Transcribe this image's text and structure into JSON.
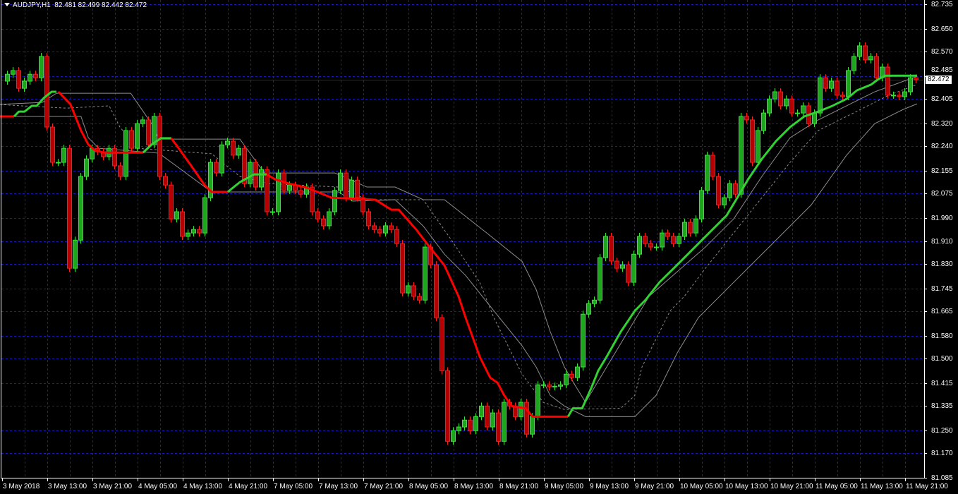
{
  "header": {
    "symbol_timeframe": "AUDJPY,H1",
    "open": "82.481",
    "high": "82.499",
    "low": "82.442",
    "close": "82.472"
  },
  "current_price_label": "82.472",
  "colors": {
    "background": "#000000",
    "grid": "#1c1ca8",
    "bull": "#1ea51e",
    "bull_border": "#32e632",
    "bear": "#b40000",
    "bear_border": "#ff1a1a",
    "trend_up": "#32d232",
    "trend_down": "#ff0000",
    "bands": "#8c8c8c",
    "price_line": "#1c1ca8"
  },
  "chart_data": {
    "type": "candlestick",
    "grid": true,
    "ylim": [
      81.085,
      82.735
    ],
    "y_ticks": [
      "82.735",
      "82.650",
      "82.570",
      "82.485",
      "82.405",
      "82.320",
      "82.240",
      "82.155",
      "82.075",
      "81.990",
      "81.910",
      "81.830",
      "81.745",
      "81.665",
      "81.580",
      "81.500",
      "81.415",
      "81.335",
      "81.250",
      "81.170",
      "81.085"
    ],
    "x_ticks": [
      "3 May 2018",
      "3 May 13:00",
      "3 May 21:00",
      "4 May 05:00",
      "4 May 13:00",
      "4 May 21:00",
      "7 May 05:00",
      "7 May 13:00",
      "7 May 21:00",
      "8 May 05:00",
      "8 May 13:00",
      "8 May 21:00",
      "9 May 05:00",
      "9 May 13:00",
      "9 May 21:00",
      "10 May 05:00",
      "10 May 13:00",
      "10 May 21:00",
      "11 May 05:00",
      "11 May 13:00",
      "11 May 21:00"
    ],
    "first_open": 82.467,
    "close": [
      82.491,
      82.504,
      82.442,
      82.467,
      82.491,
      82.479,
      82.553,
      82.307,
      82.184,
      82.184,
      82.233,
      81.815,
      81.913,
      82.135,
      82.196,
      82.233,
      82.221,
      82.204,
      82.233,
      82.172,
      82.135,
      82.295,
      82.233,
      82.319,
      82.332,
      82.245,
      82.344,
      82.135,
      82.105,
      81.987,
      82.012,
      81.926,
      81.938,
      81.95,
      81.938,
      82.061,
      82.184,
      82.147,
      82.245,
      82.258,
      82.209,
      82.233,
      82.11,
      82.184,
      82.098,
      82.159,
      82.012,
      82.012,
      82.147,
      82.086,
      82.105,
      82.086,
      82.073,
      82.098,
      82.012,
      81.987,
      81.963,
      82.012,
      82.086,
      82.147,
      82.061,
      82.122,
      82.061,
      82.012,
      81.963,
      81.95,
      81.938,
      81.963,
      81.95,
      81.901,
      81.729,
      81.754,
      81.717,
      81.704,
      81.889,
      81.827,
      81.643,
      81.458,
      81.212,
      81.249,
      81.262,
      81.286,
      81.249,
      81.298,
      81.335,
      81.262,
      81.311,
      81.212,
      81.348,
      81.335,
      81.298,
      81.348,
      81.237,
      81.298,
      81.409,
      81.409,
      81.402,
      81.404,
      81.409,
      81.446,
      81.434,
      81.471,
      81.655,
      81.692,
      81.704,
      81.852,
      81.926,
      81.84,
      81.815,
      81.827,
      81.766,
      81.864,
      81.926,
      81.901,
      81.889,
      81.889,
      81.938,
      81.926,
      81.901,
      81.926,
      81.975,
      81.938,
      81.987,
      82.086,
      82.209,
      82.135,
      82.036,
      82.061,
      82.11,
      82.073,
      82.344,
      82.332,
      82.184,
      82.295,
      82.356,
      82.405,
      82.43,
      82.381,
      82.405,
      82.356,
      82.356,
      82.381,
      82.319,
      82.356,
      82.479,
      82.442,
      82.467,
      82.418,
      82.413,
      82.504,
      82.553,
      82.59,
      82.541,
      82.553,
      82.479,
      82.516,
      82.418,
      82.418,
      82.413,
      82.43,
      82.479,
      82.472
    ],
    "trend_line": [
      {
        "direction": "down",
        "points": [
          [
            -0.75,
            82.344
          ],
          [
            1.75,
            82.344
          ]
        ]
      },
      {
        "direction": "up",
        "points": [
          [
            1.75,
            82.344
          ],
          [
            2.6,
            82.361
          ],
          [
            3.6,
            82.361
          ],
          [
            4.9,
            82.381
          ],
          [
            5.75,
            82.381
          ],
          [
            7.1,
            82.41
          ],
          [
            8.4,
            82.43
          ],
          [
            9.25,
            82.43
          ]
        ]
      },
      {
        "direction": "down",
        "points": [
          [
            9.6,
            82.43
          ],
          [
            11.75,
            82.386
          ],
          [
            13.6,
            82.295
          ],
          [
            14.9,
            82.246
          ],
          [
            16.1,
            82.226
          ],
          [
            17.6,
            82.218
          ],
          [
            24.6,
            82.218
          ]
        ]
      },
      {
        "direction": "up",
        "points": [
          [
            24.6,
            82.218
          ],
          [
            26.1,
            82.246
          ],
          [
            27.75,
            82.268
          ],
          [
            29.6,
            82.268
          ]
        ]
      },
      {
        "direction": "down",
        "points": [
          [
            29.6,
            82.268
          ],
          [
            31.1,
            82.228
          ],
          [
            33.6,
            82.159
          ],
          [
            35.5,
            82.105
          ],
          [
            36.75,
            82.081
          ],
          [
            39.6,
            82.081
          ]
        ]
      },
      {
        "direction": "up",
        "points": [
          [
            39.6,
            82.081
          ],
          [
            41.75,
            82.115
          ],
          [
            44.25,
            82.142
          ],
          [
            46.5,
            82.142
          ]
        ]
      },
      {
        "direction": "down",
        "points": [
          [
            46.5,
            82.142
          ],
          [
            48,
            82.125
          ],
          [
            50.5,
            82.11
          ],
          [
            53.6,
            82.096
          ],
          [
            58,
            82.061
          ],
          [
            65.75,
            82.054
          ],
          [
            68.6,
            82.019
          ],
          [
            69.9,
            82.019
          ],
          [
            73,
            81.95
          ],
          [
            74.9,
            81.901
          ],
          [
            78,
            81.825
          ],
          [
            80.5,
            81.717
          ],
          [
            81.75,
            81.643
          ],
          [
            84.25,
            81.507
          ],
          [
            86.1,
            81.434
          ],
          [
            87.4,
            81.416
          ],
          [
            88.6,
            81.372
          ],
          [
            89.9,
            81.335
          ],
          [
            92.4,
            81.327
          ],
          [
            93.6,
            81.298
          ],
          [
            99.9,
            81.298
          ]
        ]
      },
      {
        "direction": "up",
        "points": [
          [
            99.9,
            81.298
          ],
          [
            100.75,
            81.327
          ],
          [
            102.4,
            81.327
          ],
          [
            104,
            81.397
          ],
          [
            105.25,
            81.458
          ],
          [
            106.75,
            81.507
          ],
          [
            109.25,
            81.594
          ],
          [
            111.75,
            81.667
          ],
          [
            113.6,
            81.704
          ],
          [
            116.1,
            81.766
          ],
          [
            119.25,
            81.827
          ],
          [
            123,
            81.901
          ],
          [
            125.5,
            81.95
          ],
          [
            128,
            81.999
          ],
          [
            129.9,
            82.061
          ],
          [
            131.75,
            82.123
          ],
          [
            134.25,
            82.196
          ],
          [
            136.75,
            82.258
          ],
          [
            139.25,
            82.307
          ],
          [
            141.75,
            82.344
          ],
          [
            144.25,
            82.361
          ],
          [
            146.75,
            82.381
          ],
          [
            149.25,
            82.405
          ],
          [
            151.1,
            82.435
          ],
          [
            153.6,
            82.455
          ],
          [
            154.9,
            82.474
          ],
          [
            156.1,
            82.486
          ],
          [
            161.75,
            82.486
          ]
        ]
      }
    ],
    "bands": [
      {
        "style": "solid",
        "points": [
          [
            -0.75,
            82.386
          ],
          [
            6.75,
            82.393
          ],
          [
            9.25,
            82.425
          ],
          [
            22.4,
            82.425
          ],
          [
            26.1,
            82.319
          ],
          [
            27.4,
            82.265
          ],
          [
            41.75,
            82.265
          ],
          [
            46.1,
            82.147
          ],
          [
            58.6,
            82.147
          ],
          [
            64.25,
            82.098
          ],
          [
            69.25,
            82.098
          ],
          [
            74.25,
            82.054
          ],
          [
            78,
            82.054
          ],
          [
            85.5,
            81.938
          ],
          [
            91.75,
            81.839
          ],
          [
            94.25,
            81.741
          ],
          [
            96.75,
            81.594
          ],
          [
            99.25,
            81.471
          ],
          [
            101.1,
            81.409
          ],
          [
            103,
            81.348
          ],
          [
            106.75,
            81.471
          ],
          [
            110.5,
            81.594
          ],
          [
            114.25,
            81.717
          ],
          [
            119.25,
            81.803
          ],
          [
            124.25,
            81.889
          ],
          [
            129.25,
            81.987
          ],
          [
            134.25,
            82.135
          ],
          [
            139.25,
            82.27
          ],
          [
            144.25,
            82.332
          ],
          [
            149.25,
            82.381
          ],
          [
            154.25,
            82.43
          ],
          [
            161.75,
            82.484
          ]
        ]
      },
      {
        "style": "dashed",
        "points": [
          [
            -0.75,
            82.386
          ],
          [
            3,
            82.381
          ],
          [
            11.1,
            82.373
          ],
          [
            18.6,
            82.381
          ],
          [
            20.5,
            82.307
          ],
          [
            23.6,
            82.233
          ],
          [
            36.75,
            82.214
          ],
          [
            41.75,
            82.135
          ],
          [
            46.75,
            82.11
          ],
          [
            59.25,
            82.098
          ],
          [
            64.25,
            82.054
          ],
          [
            74.25,
            82.054
          ],
          [
            79.25,
            81.913
          ],
          [
            84.25,
            81.766
          ],
          [
            86.75,
            81.643
          ],
          [
            89.25,
            81.545
          ],
          [
            91.75,
            81.446
          ],
          [
            95.5,
            81.348
          ],
          [
            99.25,
            81.323
          ],
          [
            109.25,
            81.327
          ],
          [
            111.75,
            81.372
          ],
          [
            113,
            81.471
          ],
          [
            115.5,
            81.569
          ],
          [
            118,
            81.667
          ],
          [
            120.5,
            81.717
          ],
          [
            124.25,
            81.815
          ],
          [
            129.25,
            81.938
          ],
          [
            134.25,
            82.061
          ],
          [
            139.25,
            82.184
          ],
          [
            144.25,
            82.295
          ],
          [
            149.25,
            82.344
          ],
          [
            153,
            82.381
          ],
          [
            156.75,
            82.418
          ],
          [
            161.75,
            82.455
          ]
        ]
      },
      {
        "style": "solid",
        "points": [
          [
            -0.75,
            82.344
          ],
          [
            13.6,
            82.344
          ],
          [
            14.9,
            82.27
          ],
          [
            16.75,
            82.233
          ],
          [
            27.4,
            82.216
          ],
          [
            36.75,
            82.081
          ],
          [
            59.25,
            82.081
          ],
          [
            61.75,
            82.049
          ],
          [
            69.25,
            82.054
          ],
          [
            74.25,
            81.962
          ],
          [
            78,
            81.864
          ],
          [
            81.75,
            81.79
          ],
          [
            86.75,
            81.667
          ],
          [
            91.75,
            81.545
          ],
          [
            94.25,
            81.471
          ],
          [
            96.75,
            81.372
          ],
          [
            99.25,
            81.335
          ],
          [
            103,
            81.298
          ],
          [
            111.75,
            81.298
          ],
          [
            115.5,
            81.372
          ],
          [
            119.25,
            81.52
          ],
          [
            123,
            81.643
          ],
          [
            129.25,
            81.766
          ],
          [
            136.75,
            81.913
          ],
          [
            143,
            82.036
          ],
          [
            149.25,
            82.209
          ],
          [
            154.25,
            82.319
          ],
          [
            159.25,
            82.368
          ],
          [
            161.75,
            82.388
          ]
        ]
      }
    ],
    "current_price": 82.472
  }
}
